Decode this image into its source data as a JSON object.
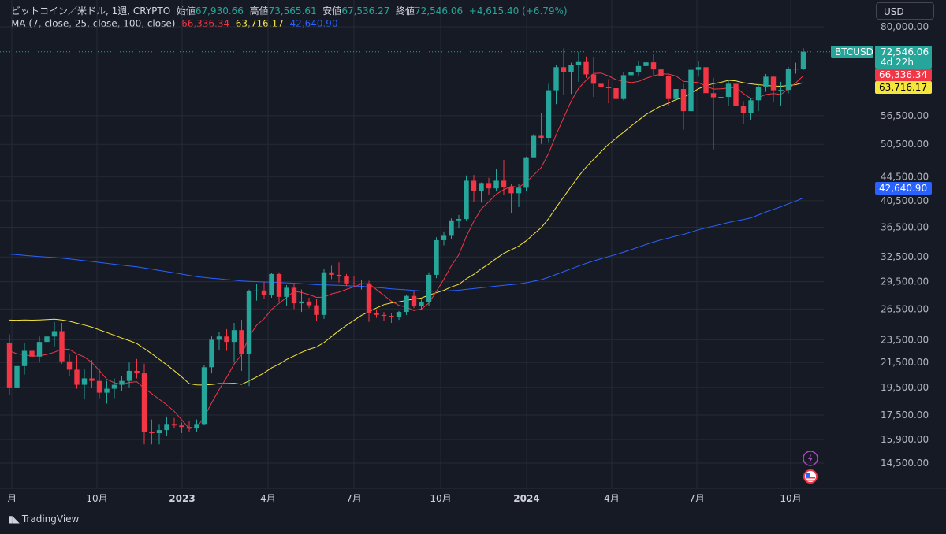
{
  "header": {
    "symbol": "ビットコイン／米ドル, 1週, CRYPTO",
    "open_label": "始値",
    "open": "67,930.66",
    "high_label": "高値",
    "high": "73,565.61",
    "low_label": "安値",
    "low": "67,536.27",
    "close_label": "終値",
    "close": "72,546.06",
    "change": "+4,615.40 (+6.79%)",
    "ma_label": "MA (7, close, 25, close, 100, close)",
    "ma7": "66,336.34",
    "ma25": "63,716.17",
    "ma100": "42,640.90"
  },
  "currency_button": "USD",
  "brand": "TradingView",
  "price_tags": {
    "symbol_tag": "BTCUSD",
    "last_price": "72,546.06",
    "countdown": "4d 22h",
    "ma7": "66,336.34",
    "ma25": "63,716.17",
    "ma100": "42,640.90"
  },
  "colors": {
    "background": "#161a25",
    "up": "#26a69a",
    "down": "#f23645",
    "ma7": "#f23645",
    "ma25": "#f5e63b",
    "ma100": "#2962ff",
    "grid": "#262a36"
  },
  "icons": [
    "lightning-icon",
    "us-flag-icon"
  ],
  "chart_data": {
    "type": "candlestick",
    "title": "ビットコイン／米ドル, 1週, CRYPTO",
    "y_ticks": [
      14500,
      15900,
      17500,
      19500,
      21500,
      23500,
      26500,
      29500,
      32500,
      36500,
      40500,
      44500,
      50500,
      56500,
      80000
    ],
    "y_tick_labels": [
      "14,500.00",
      "15,900.00",
      "17,500.00",
      "19,500.00",
      "21,500.00",
      "23,500.00",
      "26,500.00",
      "29,500.00",
      "32,500.00",
      "36,500.00",
      "40,500.00",
      "44,500.00",
      "50,500.00",
      "56,500.00",
      "80,000.00"
    ],
    "y_scale": "log",
    "x_ticks": [
      "月",
      "10月",
      "2023",
      "4月",
      "7月",
      "10月",
      "2024",
      "4月",
      "7月",
      "10月"
    ],
    "legend_position": "top-left",
    "candles": [
      [
        23200,
        24000,
        18900,
        19500
      ],
      [
        19500,
        21800,
        19000,
        21200
      ],
      [
        21200,
        23200,
        20500,
        22500
      ],
      [
        22500,
        24200,
        21300,
        22000
      ],
      [
        22000,
        23800,
        21500,
        23300
      ],
      [
        23300,
        24600,
        22500,
        23800
      ],
      [
        23800,
        25200,
        22900,
        24300
      ],
      [
        24300,
        25100,
        21400,
        21600
      ],
      [
        21600,
        22200,
        20400,
        20900
      ],
      [
        20900,
        22100,
        19400,
        19700
      ],
      [
        19700,
        21000,
        18600,
        20200
      ],
      [
        20200,
        21700,
        19500,
        20000
      ],
      [
        20000,
        21000,
        18700,
        19100
      ],
      [
        19100,
        20000,
        18300,
        19400
      ],
      [
        19400,
        20200,
        18700,
        19700
      ],
      [
        19700,
        20400,
        19200,
        20000
      ],
      [
        20000,
        21500,
        19500,
        20800
      ],
      [
        20800,
        21800,
        20200,
        20600
      ],
      [
        20600,
        21400,
        15600,
        16400
      ],
      [
        16400,
        17200,
        15600,
        16300
      ],
      [
        16300,
        16900,
        15600,
        16500
      ],
      [
        16500,
        17400,
        16100,
        16900
      ],
      [
        16900,
        17300,
        16600,
        16800
      ],
      [
        16800,
        17000,
        16300,
        16700
      ],
      [
        16700,
        17100,
        16400,
        16600
      ],
      [
        16600,
        17200,
        16400,
        16900
      ],
      [
        16900,
        21300,
        16800,
        21100
      ],
      [
        21100,
        23800,
        20600,
        23500
      ],
      [
        23500,
        24200,
        22600,
        23800
      ],
      [
        23800,
        24500,
        22500,
        23300
      ],
      [
        23300,
        25100,
        21500,
        24400
      ],
      [
        24400,
        25400,
        20800,
        22200
      ],
      [
        22200,
        28600,
        19600,
        28400
      ],
      [
        28400,
        29200,
        27400,
        28500
      ],
      [
        28500,
        29500,
        27600,
        28000
      ],
      [
        28000,
        30500,
        27700,
        30400
      ],
      [
        30400,
        30600,
        27200,
        27800
      ],
      [
        27800,
        29100,
        26800,
        28800
      ],
      [
        28800,
        29300,
        26500,
        27100
      ],
      [
        27100,
        28600,
        26200,
        27300
      ],
      [
        27300,
        27700,
        26600,
        26900
      ],
      [
        26900,
        27600,
        25300,
        25900
      ],
      [
        25900,
        31000,
        25500,
        30600
      ],
      [
        30600,
        31400,
        29800,
        30300
      ],
      [
        30300,
        31800,
        29400,
        30100
      ],
      [
        30100,
        30400,
        29000,
        29300
      ],
      [
        29300,
        30200,
        28900,
        29200
      ],
      [
        29200,
        29700,
        28600,
        29300
      ],
      [
        29300,
        29600,
        25200,
        26100
      ],
      [
        26100,
        26400,
        25600,
        25900
      ],
      [
        25900,
        26200,
        25300,
        25800
      ],
      [
        25800,
        26100,
        25100,
        25700
      ],
      [
        25700,
        26300,
        25400,
        26200
      ],
      [
        26200,
        28000,
        25900,
        27900
      ],
      [
        27900,
        28500,
        26600,
        26800
      ],
      [
        26800,
        27500,
        26400,
        27200
      ],
      [
        27200,
        30600,
        26800,
        30300
      ],
      [
        30300,
        35100,
        29900,
        34700
      ],
      [
        34700,
        35900,
        34000,
        35300
      ],
      [
        35300,
        37800,
        34800,
        37500
      ],
      [
        37500,
        38300,
        36400,
        37700
      ],
      [
        37700,
        44700,
        37500,
        43800
      ],
      [
        43800,
        44800,
        40300,
        42100
      ],
      [
        42100,
        43500,
        40200,
        43400
      ],
      [
        43400,
        44300,
        41500,
        42500
      ],
      [
        42500,
        45900,
        42000,
        43800
      ],
      [
        43800,
        47500,
        41400,
        42700
      ],
      [
        42700,
        43300,
        38600,
        41700
      ],
      [
        41700,
        43200,
        39500,
        42600
      ],
      [
        42600,
        48100,
        42100,
        48000
      ],
      [
        48000,
        52600,
        47800,
        52200
      ],
      [
        52200,
        57000,
        50600,
        51800
      ],
      [
        51800,
        64000,
        50900,
        62400
      ],
      [
        62400,
        69000,
        59100,
        68300
      ],
      [
        68300,
        73500,
        61300,
        67000
      ],
      [
        67000,
        69500,
        61500,
        68800
      ],
      [
        68800,
        72500,
        64500,
        69700
      ],
      [
        69700,
        71200,
        65500,
        66400
      ],
      [
        66400,
        71000,
        60800,
        64000
      ],
      [
        64000,
        67200,
        60000,
        63100
      ],
      [
        63100,
        65200,
        59300,
        62900
      ],
      [
        62900,
        64500,
        56700,
        60300
      ],
      [
        60300,
        67000,
        60000,
        66200
      ],
      [
        66200,
        71900,
        65200,
        67100
      ],
      [
        67100,
        70000,
        66100,
        68600
      ],
      [
        68600,
        71900,
        67000,
        69600
      ],
      [
        69600,
        71900,
        66200,
        67700
      ],
      [
        67700,
        70000,
        64500,
        65900
      ],
      [
        65900,
        66300,
        58600,
        60300
      ],
      [
        60300,
        65000,
        53500,
        62700
      ],
      [
        62700,
        64000,
        53500,
        57500
      ],
      [
        57500,
        68400,
        57000,
        67600
      ],
      [
        67600,
        69900,
        65800,
        68300
      ],
      [
        68300,
        70000,
        61000,
        61700
      ],
      [
        61700,
        65500,
        49500,
        60700
      ],
      [
        60700,
        62500,
        57800,
        60800
      ],
      [
        60800,
        64900,
        58800,
        64000
      ],
      [
        64000,
        64800,
        58300,
        58700
      ],
      [
        58700,
        59800,
        54700,
        57000
      ],
      [
        57000,
        60500,
        55600,
        60000
      ],
      [
        60000,
        64000,
        57500,
        63300
      ],
      [
        63300,
        66500,
        62000,
        65800
      ],
      [
        65800,
        66100,
        59700,
        62400
      ],
      [
        62400,
        64500,
        58800,
        62500
      ],
      [
        62500,
        68400,
        61600,
        67900
      ],
      [
        67900,
        69500,
        66600,
        67900
      ],
      [
        67930.66,
        73565.61,
        67536.27,
        72546.06
      ]
    ]
  }
}
